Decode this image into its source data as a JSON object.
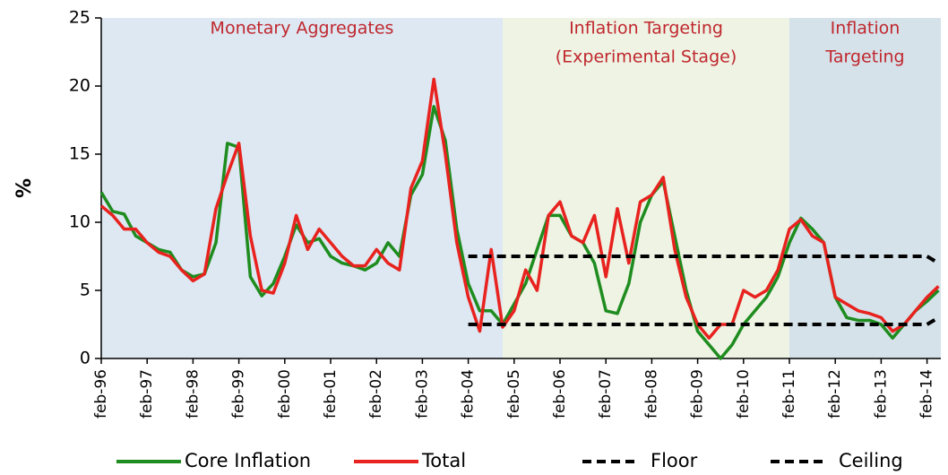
{
  "chart_data": {
    "type": "line",
    "y_label": "%",
    "categories": [
      "feb-96",
      null,
      null,
      null,
      "feb-97",
      null,
      null,
      null,
      "feb-98",
      null,
      null,
      null,
      "feb-99",
      null,
      null,
      null,
      "feb-00",
      null,
      null,
      null,
      "feb-01",
      null,
      null,
      null,
      "feb-02",
      null,
      null,
      null,
      "feb-03",
      null,
      null,
      null,
      "feb-04",
      null,
      null,
      null,
      "feb-05",
      null,
      null,
      null,
      "feb-06",
      null,
      null,
      null,
      "feb-07",
      null,
      null,
      null,
      "feb-08",
      null,
      null,
      null,
      "feb-09",
      null,
      null,
      null,
      "feb-10",
      null,
      null,
      null,
      "feb-11",
      null,
      null,
      null,
      "feb-12",
      null,
      null,
      null,
      "feb-13",
      null,
      null,
      null,
      "feb-14",
      null
    ],
    "ylim": [
      0,
      25
    ],
    "yticks": [
      0,
      5,
      10,
      15,
      20,
      25
    ],
    "grid": false,
    "legend": "bottom",
    "regions": [
      {
        "label": [
          "Monetary Aggregates"
        ],
        "start": 0,
        "end": 35,
        "color": "#dde8f3"
      },
      {
        "label": [
          "Inflation Targeting",
          "(Experimental Stage)"
        ],
        "start": 35,
        "end": 60,
        "color": "#eef3e4"
      },
      {
        "label": [
          "Inflation",
          "Targeting"
        ],
        "start": 60,
        "end": 73,
        "color": "#d5e2ea"
      }
    ],
    "series": [
      {
        "name": "Core Inflation",
        "color": "#1e8c1e",
        "dash": false,
        "values": [
          12.2,
          10.8,
          10.6,
          9.0,
          8.5,
          8.0,
          7.8,
          6.5,
          6.0,
          6.2,
          8.5,
          15.8,
          15.5,
          6.0,
          4.6,
          5.5,
          7.5,
          9.8,
          8.5,
          8.8,
          7.5,
          7.0,
          6.8,
          6.5,
          7.0,
          8.5,
          7.5,
          12.0,
          13.5,
          18.5,
          16.0,
          9.5,
          5.5,
          3.5,
          3.5,
          2.5,
          4.0,
          5.5,
          8.0,
          10.5,
          10.5,
          9.0,
          8.5,
          7.0,
          3.5,
          3.3,
          5.5,
          10.0,
          12.0,
          13.0,
          9.0,
          5.0,
          2.0,
          1.0,
          0.0,
          1.0,
          2.5,
          3.5,
          4.5,
          6.0,
          8.5,
          10.3,
          9.5,
          8.5,
          4.5,
          3.0,
          2.8,
          2.8,
          2.5,
          1.5,
          2.5,
          3.5,
          4.2,
          5.0
        ]
      },
      {
        "name": "Total",
        "color": "#e8221e",
        "dash": false,
        "values": [
          11.2,
          10.5,
          9.5,
          9.5,
          8.5,
          7.8,
          7.5,
          6.5,
          5.7,
          6.2,
          11.0,
          13.5,
          15.8,
          9.0,
          5.0,
          4.8,
          7.0,
          10.5,
          8.0,
          9.5,
          8.5,
          7.5,
          6.8,
          6.8,
          8.0,
          7.0,
          6.5,
          12.5,
          14.5,
          20.5,
          15.0,
          8.5,
          4.5,
          2.0,
          8.0,
          2.3,
          3.5,
          6.5,
          5.0,
          10.5,
          11.5,
          9.0,
          8.5,
          10.5,
          6.0,
          11.0,
          7.0,
          11.5,
          12.0,
          13.3,
          8.0,
          4.5,
          2.5,
          1.5,
          2.5,
          2.5,
          5.0,
          4.5,
          5.0,
          6.5,
          9.5,
          10.2,
          9.0,
          8.5,
          4.5,
          4.0,
          3.5,
          3.3,
          3.0,
          2.0,
          2.5,
          3.5,
          4.5,
          5.3
        ]
      },
      {
        "name": "Floor",
        "color": "#000000",
        "dash": true,
        "values": [
          null,
          null,
          null,
          null,
          null,
          null,
          null,
          null,
          null,
          null,
          null,
          null,
          null,
          null,
          null,
          null,
          null,
          null,
          null,
          null,
          null,
          null,
          null,
          null,
          null,
          null,
          null,
          null,
          null,
          null,
          null,
          null,
          2.5,
          2.5,
          2.5,
          2.5,
          2.5,
          2.5,
          2.5,
          2.5,
          2.5,
          2.5,
          2.5,
          2.5,
          2.5,
          2.5,
          2.5,
          2.5,
          2.5,
          2.5,
          2.5,
          2.5,
          2.5,
          2.5,
          2.5,
          2.5,
          2.5,
          2.5,
          2.5,
          2.5,
          2.5,
          2.5,
          2.5,
          2.5,
          2.5,
          2.5,
          2.5,
          2.5,
          2.5,
          2.5,
          2.5,
          2.5,
          2.5,
          3.0
        ]
      },
      {
        "name": "Ceiling",
        "color": "#000000",
        "dash": true,
        "values": [
          null,
          null,
          null,
          null,
          null,
          null,
          null,
          null,
          null,
          null,
          null,
          null,
          null,
          null,
          null,
          null,
          null,
          null,
          null,
          null,
          null,
          null,
          null,
          null,
          null,
          null,
          null,
          null,
          null,
          null,
          null,
          null,
          7.5,
          7.5,
          7.5,
          7.5,
          7.5,
          7.5,
          7.5,
          7.5,
          7.5,
          7.5,
          7.5,
          7.5,
          7.5,
          7.5,
          7.5,
          7.5,
          7.5,
          7.5,
          7.5,
          7.5,
          7.5,
          7.5,
          7.5,
          7.5,
          7.5,
          7.5,
          7.5,
          7.5,
          7.5,
          7.5,
          7.5,
          7.5,
          7.5,
          7.5,
          7.5,
          7.5,
          7.5,
          7.5,
          7.5,
          7.5,
          7.5,
          7.0
        ]
      }
    ]
  }
}
